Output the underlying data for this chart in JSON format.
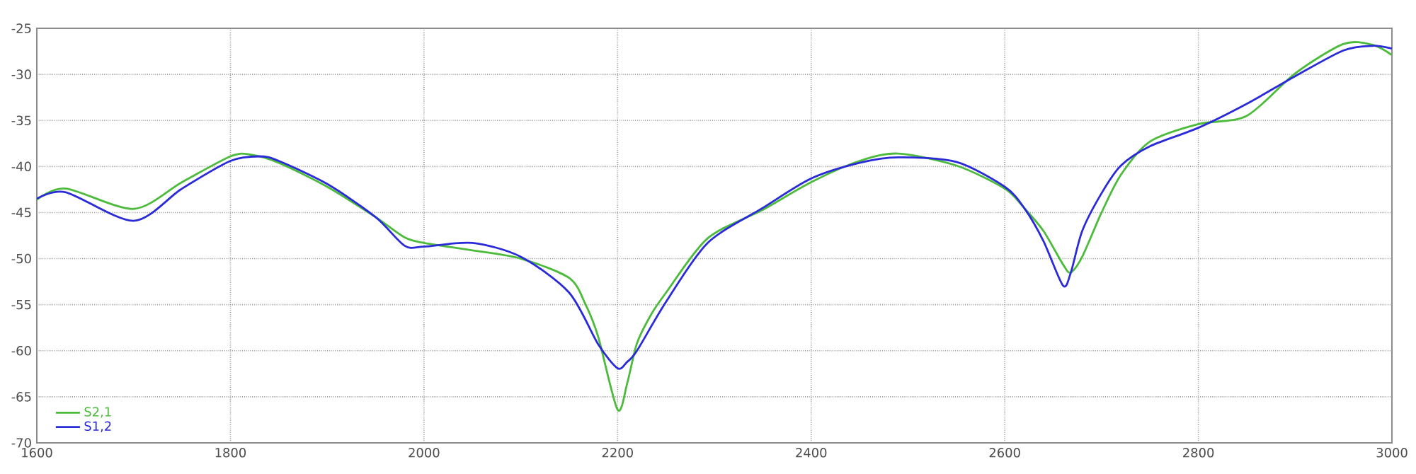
{
  "chart_data": {
    "type": "line",
    "xlim": [
      1600,
      3000
    ],
    "ylim": [
      -70,
      -25
    ],
    "xticks": [
      1600,
      1800,
      2000,
      2200,
      2400,
      2600,
      2800,
      3000
    ],
    "yticks": [
      -70,
      -65,
      -60,
      -55,
      -50,
      -45,
      -40,
      -35,
      -30,
      -25
    ],
    "grid": true,
    "legend": "bottom left",
    "marker": "none",
    "line_style": "solid",
    "series": [
      {
        "name": "S2,1",
        "color": "#4cbb3c",
        "x": [
          1600,
          1630,
          1700,
          1750,
          1800,
          1820,
          1850,
          1900,
          1950,
          1980,
          2000,
          2050,
          2100,
          2150,
          2167,
          2180,
          2200,
          2210,
          2220,
          2235,
          2250,
          2293,
          2350,
          2400,
          2450,
          2490,
          2550,
          2600,
          2620,
          2640,
          2660,
          2668,
          2680,
          2700,
          2720,
          2750,
          2800,
          2850,
          2900,
          2950,
          2980,
          3000
        ],
        "values": [
          -43.6,
          -42.4,
          -44.6,
          -41.7,
          -38.9,
          -38.7,
          -39.6,
          -42.2,
          -45.5,
          -47.7,
          -48.3,
          -49.1,
          -50.0,
          -52.1,
          -55.0,
          -58.5,
          -66.4,
          -63.5,
          -59.2,
          -56.0,
          -53.7,
          -47.8,
          -44.7,
          -41.7,
          -39.4,
          -38.6,
          -39.9,
          -42.4,
          -44.5,
          -47.0,
          -50.6,
          -51.5,
          -49.8,
          -45.0,
          -40.9,
          -37.3,
          -35.4,
          -34.5,
          -29.9,
          -26.7,
          -26.8,
          -27.9
        ]
      },
      {
        "name": "S1,2",
        "color": "#2a2ad8",
        "x": [
          1600,
          1630,
          1700,
          1750,
          1800,
          1830,
          1850,
          1900,
          1950,
          1980,
          2000,
          2050,
          2100,
          2150,
          2180,
          2200,
          2210,
          2220,
          2250,
          2293,
          2350,
          2400,
          2450,
          2490,
          2550,
          2600,
          2620,
          2640,
          2660,
          2668,
          2680,
          2700,
          2720,
          2750,
          2800,
          2850,
          2900,
          2950,
          2980,
          3000
        ],
        "values": [
          -43.5,
          -42.8,
          -45.9,
          -42.4,
          -39.4,
          -38.9,
          -39.4,
          -41.9,
          -45.5,
          -48.6,
          -48.7,
          -48.3,
          -49.8,
          -53.7,
          -59.3,
          -61.9,
          -61.2,
          -60.0,
          -54.7,
          -48.3,
          -44.5,
          -41.3,
          -39.6,
          -39.0,
          -39.5,
          -42.2,
          -44.5,
          -48.1,
          -52.9,
          -51.6,
          -47.0,
          -42.9,
          -39.9,
          -37.8,
          -35.8,
          -33.2,
          -30.2,
          -27.4,
          -26.9,
          -27.2
        ]
      }
    ]
  }
}
